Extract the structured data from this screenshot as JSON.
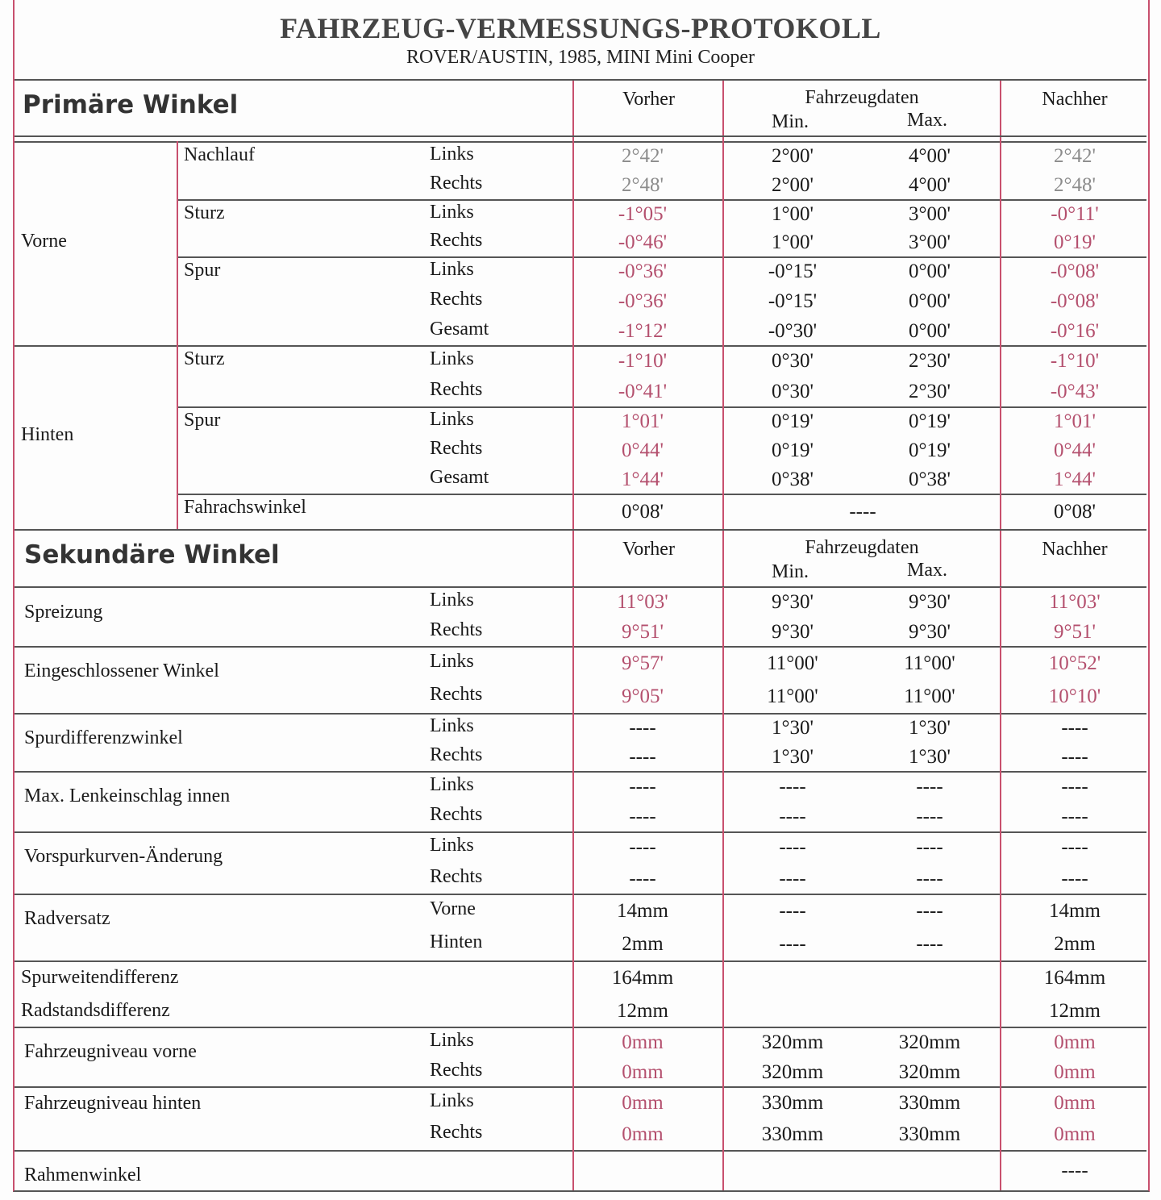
{
  "title": "FAHRZEUG-VERMESSUNGS-PROTOKOLL",
  "subtitle": "ROVER/AUSTIN, 1985, MINI Mini Cooper",
  "colors": {
    "red": "#b4506e",
    "gray": "#8c8c8c",
    "black": "#1a1a1a",
    "border": "#c8506e"
  },
  "headers": {
    "vorher": "Vorher",
    "fahrzeugdaten": "Fahrzeugdaten",
    "min": "Min.",
    "max": "Max.",
    "nachher": "Nachher"
  },
  "primary": {
    "title": "Primäre Winkel",
    "groups": [
      {
        "name": "Vorne",
        "subs": [
          {
            "name": "Nachlauf",
            "rows": [
              {
                "side": "Links",
                "vorher": "2°42'",
                "min": "2°00'",
                "max": "4°00'",
                "nachher": "2°42'",
                "tone": "gray"
              },
              {
                "side": "Rechts",
                "vorher": "2°48'",
                "min": "2°00'",
                "max": "4°00'",
                "nachher": "2°48'",
                "tone": "gray"
              }
            ]
          },
          {
            "name": "Sturz",
            "rows": [
              {
                "side": "Links",
                "vorher": "-1°05'",
                "min": "1°00'",
                "max": "3°00'",
                "nachher": "-0°11'",
                "tone": "red"
              },
              {
                "side": "Rechts",
                "vorher": "-0°46'",
                "min": "1°00'",
                "max": "3°00'",
                "nachher": "0°19'",
                "tone": "red"
              }
            ]
          },
          {
            "name": "Spur",
            "rows": [
              {
                "side": "Links",
                "vorher": "-0°36'",
                "min": "-0°15'",
                "max": "0°00'",
                "nachher": "-0°08'",
                "tone": "red"
              },
              {
                "side": "Rechts",
                "vorher": "-0°36'",
                "min": "-0°15'",
                "max": "0°00'",
                "nachher": "-0°08'",
                "tone": "red"
              },
              {
                "side": "Gesamt",
                "vorher": "-1°12'",
                "min": "-0°30'",
                "max": "0°00'",
                "nachher": "-0°16'",
                "tone": "red"
              }
            ]
          }
        ]
      },
      {
        "name": "Hinten",
        "subs": [
          {
            "name": "Sturz",
            "rows": [
              {
                "side": "Links",
                "vorher": "-1°10'",
                "min": "0°30'",
                "max": "2°30'",
                "nachher": "-1°10'",
                "tone": "red"
              },
              {
                "side": "Rechts",
                "vorher": "-0°41'",
                "min": "0°30'",
                "max": "2°30'",
                "nachher": "-0°43'",
                "tone": "red"
              }
            ]
          },
          {
            "name": "Spur",
            "rows": [
              {
                "side": "Links",
                "vorher": "1°01'",
                "min": "0°19'",
                "max": "0°19'",
                "nachher": "1°01'",
                "tone": "red"
              },
              {
                "side": "Rechts",
                "vorher": "0°44'",
                "min": "0°19'",
                "max": "0°19'",
                "nachher": "0°44'",
                "tone": "red"
              },
              {
                "side": "Gesamt",
                "vorher": "1°44'",
                "min": "0°38'",
                "max": "0°38'",
                "nachher": "1°44'",
                "tone": "red"
              }
            ]
          },
          {
            "name": "Fahrachswinkel",
            "rows": [
              {
                "side": "",
                "vorher": "0°08'",
                "range": "----",
                "nachher": "0°08'",
                "tone": "black"
              }
            ]
          }
        ]
      }
    ]
  },
  "secondary": {
    "title": "Sekundäre Winkel",
    "blocks": [
      {
        "name": "Spreizung",
        "rows": [
          {
            "side": "Links",
            "vorher": "11°03'",
            "min": "9°30'",
            "max": "9°30'",
            "nachher": "11°03'",
            "tone": "red"
          },
          {
            "side": "Rechts",
            "vorher": "9°51'",
            "min": "9°30'",
            "max": "9°30'",
            "nachher": "9°51'",
            "tone": "red"
          }
        ]
      },
      {
        "name": "Eingeschlossener Winkel",
        "rows": [
          {
            "side": "Links",
            "vorher": "9°57'",
            "min": "11°00'",
            "max": "11°00'",
            "nachher": "10°52'",
            "tone": "red"
          },
          {
            "side": "Rechts",
            "vorher": "9°05'",
            "min": "11°00'",
            "max": "11°00'",
            "nachher": "10°10'",
            "tone": "red"
          }
        ]
      },
      {
        "name": "Spurdifferenzwinkel",
        "rows": [
          {
            "side": "Links",
            "vorher": "----",
            "min": "1°30'",
            "max": "1°30'",
            "nachher": "----",
            "tone": "black"
          },
          {
            "side": "Rechts",
            "vorher": "----",
            "min": "1°30'",
            "max": "1°30'",
            "nachher": "----",
            "tone": "black"
          }
        ]
      },
      {
        "name": "Max. Lenkeinschlag innen",
        "rows": [
          {
            "side": "Links",
            "vorher": "----",
            "min": "----",
            "max": "----",
            "nachher": "----",
            "tone": "black"
          },
          {
            "side": "Rechts",
            "vorher": "----",
            "min": "----",
            "max": "----",
            "nachher": "----",
            "tone": "black"
          }
        ]
      },
      {
        "name": "Vorspurkurven-Änderung",
        "rows": [
          {
            "side": "Links",
            "vorher": "----",
            "min": "----",
            "max": "----",
            "nachher": "----",
            "tone": "black"
          },
          {
            "side": "Rechts",
            "vorher": "----",
            "min": "----",
            "max": "----",
            "nachher": "----",
            "tone": "black"
          }
        ]
      },
      {
        "name": "Radversatz",
        "rows": [
          {
            "side": "Vorne",
            "vorher": "14mm",
            "min": "----",
            "max": "----",
            "nachher": "14mm",
            "tone": "black"
          },
          {
            "side": "Hinten",
            "vorher": "2mm",
            "min": "----",
            "max": "----",
            "nachher": "2mm",
            "tone": "black"
          }
        ]
      },
      {
        "name": "",
        "rows": [
          {
            "label": "Spurweitendifferenz",
            "side": "",
            "vorher": "164mm",
            "min": "",
            "max": "",
            "nachher": "164mm",
            "tone": "black"
          },
          {
            "label": "Radstandsdifferenz",
            "side": "",
            "vorher": "12mm",
            "min": "",
            "max": "",
            "nachher": "12mm",
            "tone": "black"
          }
        ]
      },
      {
        "name": "Fahrzeugniveau vorne",
        "rows": [
          {
            "side": "Links",
            "vorher": "0mm",
            "min": "320mm",
            "max": "320mm",
            "nachher": "0mm",
            "tone": "red"
          },
          {
            "side": "Rechts",
            "vorher": "0mm",
            "min": "320mm",
            "max": "320mm",
            "nachher": "0mm",
            "tone": "red"
          }
        ]
      },
      {
        "name": "Fahrzeugniveau hinten",
        "rows": [
          {
            "side": "Links",
            "vorher": "0mm",
            "min": "330mm",
            "max": "330mm",
            "nachher": "0mm",
            "tone": "red"
          },
          {
            "side": "Rechts",
            "vorher": "0mm",
            "min": "330mm",
            "max": "330mm",
            "nachher": "0mm",
            "tone": "red"
          }
        ]
      },
      {
        "name": "Rahmenwinkel",
        "rows": [
          {
            "side": "",
            "vorher": "",
            "min": "",
            "max": "",
            "nachher": "----",
            "tone": "black"
          }
        ]
      }
    ]
  }
}
